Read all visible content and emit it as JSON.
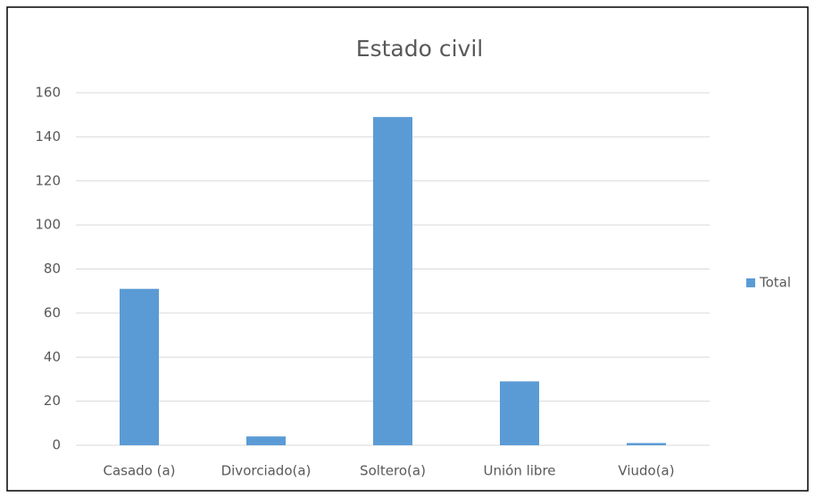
{
  "chart_data": {
    "type": "bar",
    "title": "Estado civil",
    "categories": [
      "Casado (a)",
      "Divorciado(a)",
      "Soltero(a)",
      "Unión libre",
      "Viudo(a)"
    ],
    "series": [
      {
        "name": "Total",
        "color": "#5b9bd5",
        "values": [
          71,
          4,
          149,
          29,
          1
        ]
      }
    ],
    "ylim": [
      0,
      160
    ],
    "yticks": [
      0,
      20,
      40,
      60,
      80,
      100,
      120,
      140,
      160
    ],
    "grid": true,
    "legend": "right"
  }
}
